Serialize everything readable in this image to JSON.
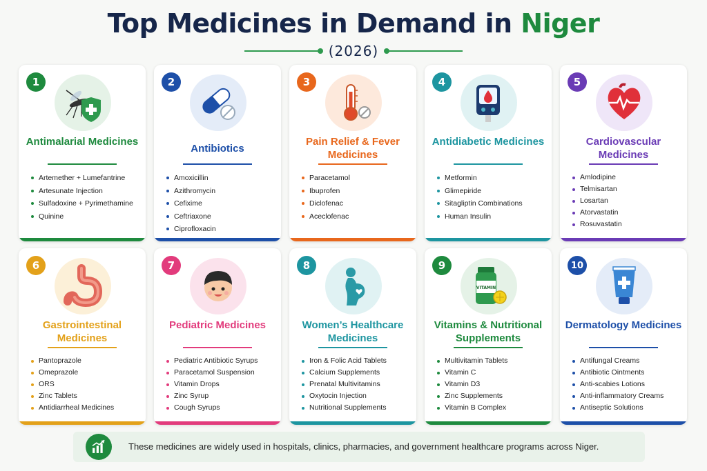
{
  "title": {
    "main": "Top Medicines in Demand in",
    "highlight": "Niger",
    "year": "(2026)"
  },
  "colors": {
    "green": "#1e8a3e",
    "blue": "#1d4fa8",
    "orange": "#e8671c",
    "teal": "#1d95a0",
    "purple": "#6a3bb5",
    "yellow": "#e3a11a",
    "pink": "#e23b7c",
    "navy": "#16264a"
  },
  "cards": [
    {
      "number": "1",
      "title": "Antimalarial Medicines",
      "icon": "mosquito-shield-icon",
      "items": [
        "Artemether + Lumefantrine",
        "Artesunate Injection",
        "Sulfadoxine + Pyrimethamine",
        "Quinine"
      ]
    },
    {
      "number": "2",
      "title": "Antibiotics",
      "icon": "capsule-pill-icon",
      "items": [
        "Amoxicillin",
        "Azithromycin",
        "Cefixime",
        "Ceftriaxone",
        "Ciprofloxacin"
      ]
    },
    {
      "number": "3",
      "title": "Pain Relief & Fever Medicines",
      "icon": "thermometer-icon",
      "items": [
        "Paracetamol",
        "Ibuprofen",
        "Diclofenac",
        "Aceclofenac"
      ]
    },
    {
      "number": "4",
      "title": "Antidiabetic Medicines",
      "icon": "glucose-meter-icon",
      "items": [
        "Metformin",
        "Glimepiride",
        "Sitagliptin Combinations",
        "Human Insulin"
      ]
    },
    {
      "number": "5",
      "title": "Cardiovascular Medicines",
      "icon": "heart-icon",
      "items": [
        "Amlodipine",
        "Telmisartan",
        "Losartan",
        "Atorvastatin",
        "Rosuvastatin"
      ]
    },
    {
      "number": "6",
      "title": "Gastrointestinal Medicines",
      "icon": "stomach-icon",
      "items": [
        "Pantoprazole",
        "Omeprazole",
        "ORS",
        "Zinc Tablets",
        "Antidiarrheal Medicines"
      ]
    },
    {
      "number": "7",
      "title": "Pediatric Medicines",
      "icon": "child-face-icon",
      "items": [
        "Pediatric Antibiotic Syrups",
        "Paracetamol Suspension",
        "Vitamin Drops",
        "Zinc Syrup",
        "Cough Syrups"
      ]
    },
    {
      "number": "8",
      "title": "Women’s Healthcare Medicines",
      "icon": "pregnant-woman-icon",
      "items": [
        "Iron & Folic Acid Tablets",
        "Calcium Supplements",
        "Prenatal Multivitamins",
        "Oxytocin Injection",
        "Nutritional Supplements"
      ]
    },
    {
      "number": "9",
      "title": "Vitamins & Nutritional Supplements",
      "icon": "vitamin-bottle-icon",
      "icon_label": "VITAMIN",
      "items": [
        "Multivitamin Tablets",
        "Vitamin C",
        "Vitamin D3",
        "Zinc Supplements",
        "Vitamin B Complex"
      ]
    },
    {
      "number": "10",
      "title": "Dermatology Medicines",
      "icon": "cream-tube-icon",
      "items": [
        "Antifungal Creams",
        "Antibiotic Ointments",
        "Anti-scabies Lotions",
        "Anti-inflammatory Creams",
        "Antiseptic Solutions"
      ]
    }
  ],
  "footer": {
    "text": "These medicines are widely used in hospitals, clinics, pharmacies, and government healthcare programs across Niger.",
    "icon": "growth-chart-icon"
  }
}
